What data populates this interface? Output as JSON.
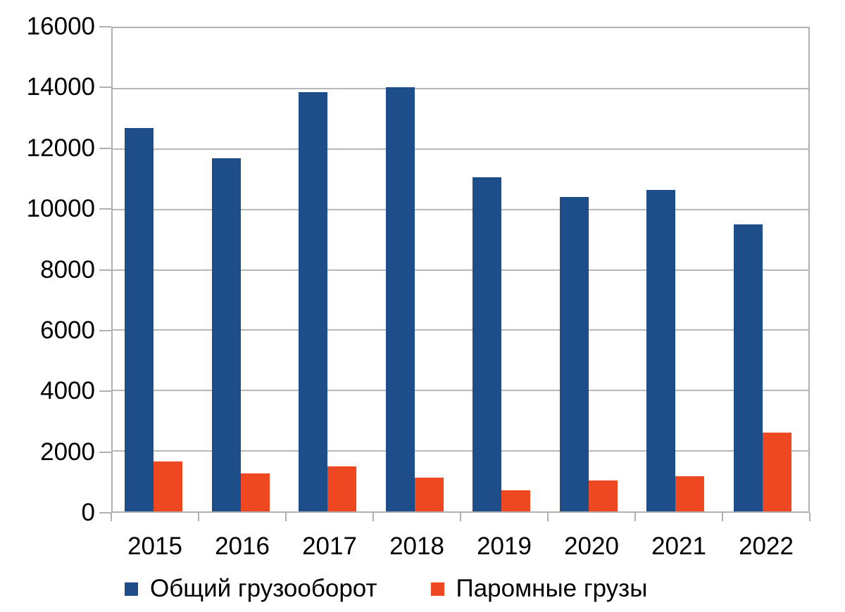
{
  "chart_data": {
    "type": "bar",
    "title": "",
    "categories": [
      "2015",
      "2016",
      "2017",
      "2018",
      "2019",
      "2020",
      "2021",
      "2022"
    ],
    "series": [
      {
        "key": "total-cargo",
        "name": "Общий грузооборот",
        "color": "#1d4e89",
        "values": [
          12700,
          11700,
          13870,
          14040,
          11060,
          10420,
          10650,
          9500
        ]
      },
      {
        "key": "ferry-cargo",
        "name": "Паромные грузы",
        "color": "#ee4823",
        "values": [
          1650,
          1250,
          1480,
          1120,
          710,
          1030,
          1160,
          2600
        ]
      }
    ],
    "xlabel": "",
    "ylabel": "",
    "ylim": [
      0,
      16000
    ],
    "yticks": [
      0,
      2000,
      4000,
      6000,
      8000,
      10000,
      12000,
      14000,
      16000
    ],
    "grid": "horizontal",
    "gridline_color": "#b7b7b7",
    "axis_color": "#b0b0b0",
    "legend_position": "bottom"
  }
}
